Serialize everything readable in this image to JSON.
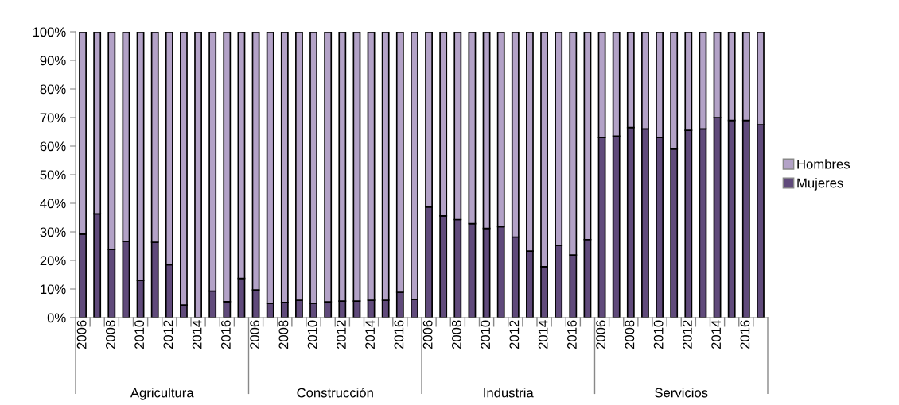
{
  "chart_data": {
    "type": "bar",
    "stacked": true,
    "legend": "right",
    "grid": false,
    "categories": [
      "2006",
      null,
      "2008",
      null,
      "2010",
      null,
      "2012",
      null,
      "2014",
      null,
      "2016",
      null,
      "2006",
      null,
      "2008",
      null,
      "2010",
      null,
      "2012",
      null,
      "2014",
      null,
      "2016",
      null,
      "2006",
      null,
      "2008",
      null,
      "2010",
      null,
      "2012",
      null,
      "2014",
      null,
      "2016",
      null,
      "2006",
      null,
      "2008",
      null,
      "2010",
      null,
      "2012",
      null,
      "2014",
      null,
      "2016",
      null
    ],
    "annotations": [
      "Agricultura",
      "Construcción",
      "Industria",
      "Servicios"
    ],
    "ylim": [
      0,
      100
    ],
    "yticks": [
      {
        "value": 0,
        "label": "0%"
      },
      {
        "value": 10,
        "label": "10%"
      },
      {
        "value": 20,
        "label": "20%"
      },
      {
        "value": 30,
        "label": "30%"
      },
      {
        "value": 40,
        "label": "40%"
      },
      {
        "value": 50,
        "label": "50%"
      },
      {
        "value": 60,
        "label": "60%"
      },
      {
        "value": 70,
        "label": "70%"
      },
      {
        "value": 80,
        "label": "80%"
      },
      {
        "value": 90,
        "label": "90%"
      },
      {
        "value": 100,
        "label": "100%"
      }
    ],
    "series": [
      {
        "name": "Mujeres",
        "color": "#604a7b",
        "values": [
          29.2,
          36.3,
          23.9,
          26.7,
          13.1,
          26.4,
          18.5,
          4.4,
          0,
          9.3,
          5.6,
          13.7,
          9.7,
          5,
          5.3,
          6.1,
          5,
          5.5,
          5.8,
          5.8,
          6.1,
          6.1,
          8.9,
          6.4,
          38.7,
          35.6,
          34.3,
          32.9,
          31.2,
          31.8,
          28.2,
          23.3,
          17.8,
          25.3,
          21.9,
          27.3,
          63,
          63.5,
          66.5,
          66,
          63,
          59,
          65.5,
          66,
          70,
          69,
          69,
          67.5
        ]
      },
      {
        "name": "Hombres",
        "color": "#b3a2c7",
        "values": [
          70.8,
          63.7,
          76.1,
          73.3,
          86.9,
          73.6,
          81.5,
          95.6,
          100,
          90.7,
          94.4,
          86.3,
          90.3,
          95,
          94.7,
          93.9,
          95,
          94.5,
          94.2,
          94.2,
          93.9,
          93.9,
          91.1,
          93.6,
          61.3,
          64.4,
          65.7,
          67.1,
          68.8,
          68.2,
          71.8,
          76.7,
          82.2,
          74.7,
          78.1,
          72.7,
          37,
          36.5,
          33.5,
          34,
          37,
          41,
          34.5,
          34,
          30,
          31,
          31,
          32.5
        ]
      }
    ]
  }
}
